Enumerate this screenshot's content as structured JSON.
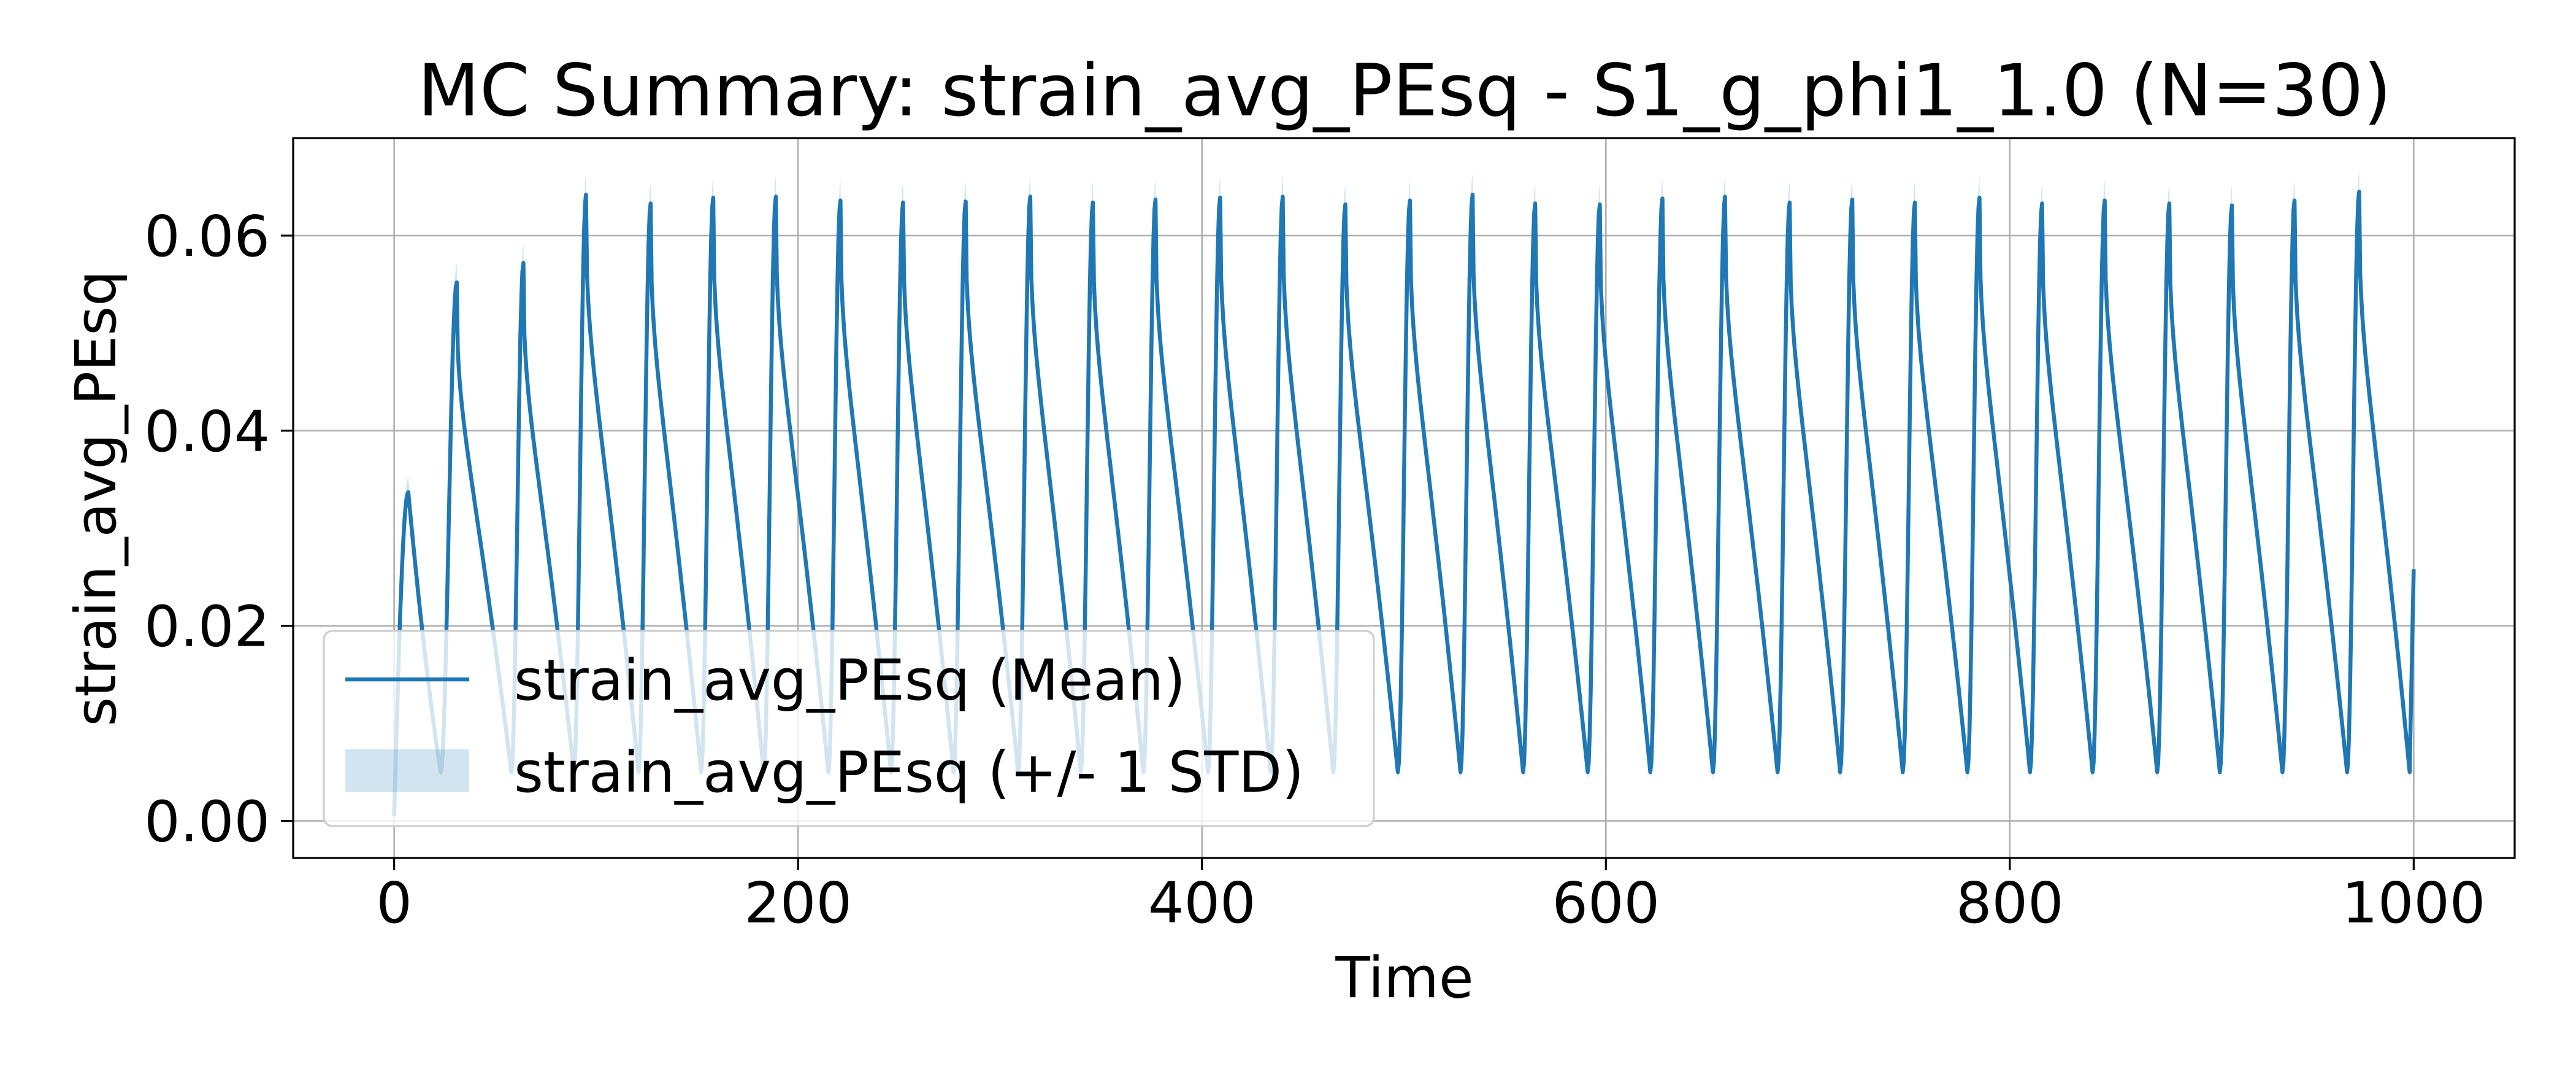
{
  "chart_data": {
    "type": "line",
    "title": "MC Summary: strain_avg_PEsq - S1_g_phi1_1.0 (N=30)",
    "xlabel": "Time",
    "ylabel": "strain_avg_PEsq",
    "xlim": [
      -50,
      1050
    ],
    "ylim": [
      -0.0038,
      0.07
    ],
    "xticks": [
      0,
      200,
      400,
      600,
      800,
      1000
    ],
    "xtick_labels": [
      "0",
      "200",
      "400",
      "600",
      "800",
      "1000"
    ],
    "yticks": [
      0.0,
      0.02,
      0.04,
      0.06
    ],
    "ytick_labels": [
      "0.00",
      "0.02",
      "0.04",
      "0.06"
    ],
    "grid": true,
    "legend": {
      "location": "lower-left",
      "entries": [
        {
          "label": "strain_avg_PEsq (Mean)",
          "kind": "line"
        },
        {
          "label": "strain_avg_PEsq (+/- 1 STD)",
          "kind": "band"
        }
      ]
    },
    "colors": {
      "mean": "#1f77b4",
      "band": "#1f77b4"
    },
    "series": [
      {
        "name": "strain_avg_PEsq (Mean)",
        "description_of_shape": "damped-onset periodic oscillation, period ~31.3 time units",
        "x_start": 0,
        "x_end": 1000,
        "initial_value": 0.0005,
        "first_peak": {
          "x": 7,
          "y": 0.0337
        },
        "first_trough": {
          "x": 23,
          "y": 0.005
        },
        "peaks": [
          {
            "x": 7,
            "y": 0.0337
          },
          {
            "x": 31,
            "y": 0.0552
          },
          {
            "x": 64,
            "y": 0.0572
          },
          {
            "x": 95,
            "y": 0.0642
          },
          {
            "x": 127,
            "y": 0.0633
          },
          {
            "x": 158,
            "y": 0.0639
          },
          {
            "x": 189,
            "y": 0.064
          },
          {
            "x": 221,
            "y": 0.0636
          },
          {
            "x": 252,
            "y": 0.0634
          },
          {
            "x": 283,
            "y": 0.0635
          },
          {
            "x": 315,
            "y": 0.064
          },
          {
            "x": 346,
            "y": 0.0634
          },
          {
            "x": 377,
            "y": 0.0637
          },
          {
            "x": 409,
            "y": 0.0639
          },
          {
            "x": 440,
            "y": 0.064
          },
          {
            "x": 471,
            "y": 0.0632
          },
          {
            "x": 503,
            "y": 0.0636
          },
          {
            "x": 534,
            "y": 0.0642
          },
          {
            "x": 565,
            "y": 0.0633
          },
          {
            "x": 597,
            "y": 0.0632
          },
          {
            "x": 628,
            "y": 0.0638
          },
          {
            "x": 659,
            "y": 0.064
          },
          {
            "x": 691,
            "y": 0.0634
          },
          {
            "x": 722,
            "y": 0.0637
          },
          {
            "x": 753,
            "y": 0.0634
          },
          {
            "x": 785,
            "y": 0.0639
          },
          {
            "x": 816,
            "y": 0.0633
          },
          {
            "x": 847,
            "y": 0.0636
          },
          {
            "x": 879,
            "y": 0.0633
          },
          {
            "x": 910,
            "y": 0.0631
          },
          {
            "x": 941,
            "y": 0.0636
          },
          {
            "x": 973,
            "y": 0.0645
          }
        ],
        "trough_value": 0.005,
        "final_value": 0.0258,
        "std_band_peak_halfwidth": 0.0022,
        "std_band_trough_halfwidth": 0.0008
      }
    ]
  }
}
